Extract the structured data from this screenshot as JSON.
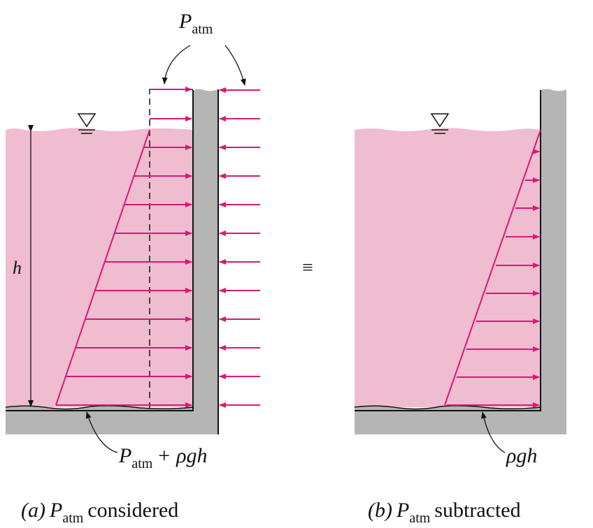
{
  "labels": {
    "p_atm_top": {
      "symbol": "P",
      "subscript": "atm"
    },
    "depth": "h",
    "equivalence": "≡",
    "bottom_a": {
      "symbol": "P",
      "subscript": "atm",
      "rest": "+ ρgh"
    },
    "bottom_b": "ρgh",
    "caption_a": {
      "prefix": "(a)",
      "symbol": "P",
      "subscript": "atm",
      "rest": "considered"
    },
    "caption_b": {
      "prefix": "(b)",
      "symbol": "P",
      "subscript": "atm",
      "rest": "subtracted"
    }
  },
  "colors": {
    "water": "#f0bccf",
    "arrow": "#d8187a",
    "wall": "#b5b5b5",
    "outline": "#111111"
  }
}
